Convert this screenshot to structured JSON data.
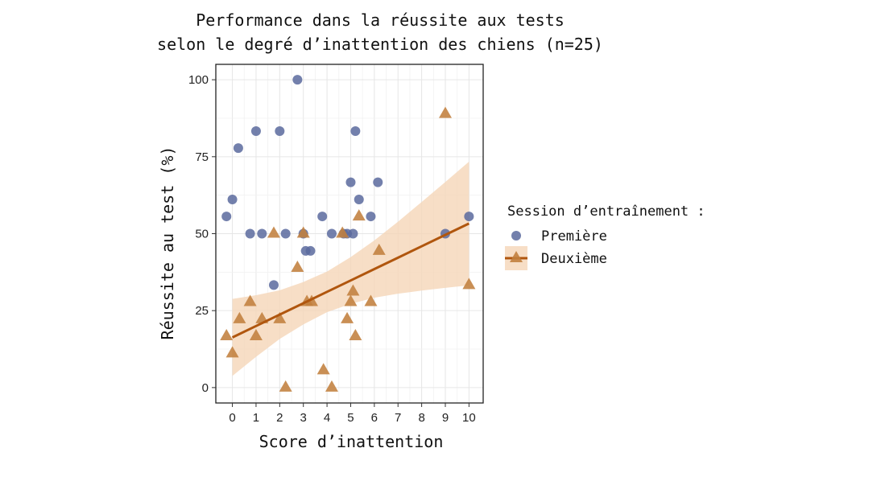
{
  "chart_data": {
    "type": "scatter",
    "title": "Performance dans la réussite aux tests",
    "subtitle": "selon le degré d’inattention des chiens (n=25)",
    "xlabel": "Score d’inattention",
    "ylabel": "Réussite au test (%)",
    "xlim": [
      -0.7,
      10.6
    ],
    "ylim": [
      -5,
      105
    ],
    "x_ticks": [
      0,
      1,
      2,
      3,
      4,
      5,
      6,
      7,
      8,
      9,
      10
    ],
    "y_ticks": [
      0,
      25,
      50,
      75,
      100
    ],
    "grid": true,
    "legend": {
      "title": "Session d’entraînement :",
      "position": "right"
    },
    "colors": {
      "premiere": "#5b6a9e",
      "deuxieme": "#c17f3e",
      "trend_line": "#b0560e",
      "confidence_band": "#f5d6b8"
    },
    "series": [
      {
        "name": "Première",
        "marker": "circle",
        "points": [
          {
            "x": -0.25,
            "y": 55.6
          },
          {
            "x": 0,
            "y": 61.1
          },
          {
            "x": 0.25,
            "y": 77.8
          },
          {
            "x": 0.75,
            "y": 50
          },
          {
            "x": 1,
            "y": 83.3
          },
          {
            "x": 1.25,
            "y": 50
          },
          {
            "x": 1.75,
            "y": 33.3
          },
          {
            "x": 2,
            "y": 83.3
          },
          {
            "x": 2.25,
            "y": 50
          },
          {
            "x": 2.75,
            "y": 100
          },
          {
            "x": 3,
            "y": 50
          },
          {
            "x": 3.1,
            "y": 44.4
          },
          {
            "x": 3.3,
            "y": 44.4
          },
          {
            "x": 3.8,
            "y": 55.6
          },
          {
            "x": 4.2,
            "y": 50
          },
          {
            "x": 4.7,
            "y": 50
          },
          {
            "x": 4.85,
            "y": 50
          },
          {
            "x": 5,
            "y": 66.7
          },
          {
            "x": 5.1,
            "y": 50
          },
          {
            "x": 5.2,
            "y": 83.3
          },
          {
            "x": 5.35,
            "y": 61.1
          },
          {
            "x": 5.85,
            "y": 55.6
          },
          {
            "x": 6.15,
            "y": 66.7
          },
          {
            "x": 9,
            "y": 50
          },
          {
            "x": 10,
            "y": 55.6
          }
        ]
      },
      {
        "name": "Deuxième",
        "marker": "triangle",
        "points": [
          {
            "x": -0.25,
            "y": 16.7
          },
          {
            "x": 0,
            "y": 11.1
          },
          {
            "x": 0.3,
            "y": 22.2
          },
          {
            "x": 0.75,
            "y": 27.8
          },
          {
            "x": 1,
            "y": 16.7
          },
          {
            "x": 1.25,
            "y": 22.2
          },
          {
            "x": 1.75,
            "y": 50
          },
          {
            "x": 2,
            "y": 22.2
          },
          {
            "x": 2.25,
            "y": 0
          },
          {
            "x": 2.75,
            "y": 38.9
          },
          {
            "x": 3,
            "y": 50
          },
          {
            "x": 3.15,
            "y": 27.8
          },
          {
            "x": 3.35,
            "y": 27.8
          },
          {
            "x": 3.85,
            "y": 5.6
          },
          {
            "x": 4.2,
            "y": 0
          },
          {
            "x": 4.65,
            "y": 50
          },
          {
            "x": 4.85,
            "y": 22.2
          },
          {
            "x": 5,
            "y": 27.8
          },
          {
            "x": 5.1,
            "y": 31.2
          },
          {
            "x": 5.2,
            "y": 16.7
          },
          {
            "x": 5.35,
            "y": 55.6
          },
          {
            "x": 5.85,
            "y": 27.8
          },
          {
            "x": 6.2,
            "y": 44.4
          },
          {
            "x": 9,
            "y": 88.9
          },
          {
            "x": 10,
            "y": 33.3
          }
        ],
        "trend": {
          "x": [
            0,
            1,
            2,
            3,
            4,
            5,
            6,
            7,
            8,
            9,
            10
          ],
          "fit": [
            16.3,
            20.0,
            23.7,
            27.4,
            31.1,
            34.8,
            38.5,
            42.2,
            45.9,
            49.6,
            53.3
          ],
          "lower": [
            3.8,
            10.0,
            15.8,
            20.5,
            24.5,
            27.2,
            29.2,
            30.5,
            31.5,
            32.4,
            33.2
          ],
          "upper": [
            28.8,
            30.0,
            31.6,
            34.3,
            37.7,
            42.4,
            47.8,
            53.9,
            60.3,
            66.8,
            73.4
          ]
        }
      }
    ]
  }
}
